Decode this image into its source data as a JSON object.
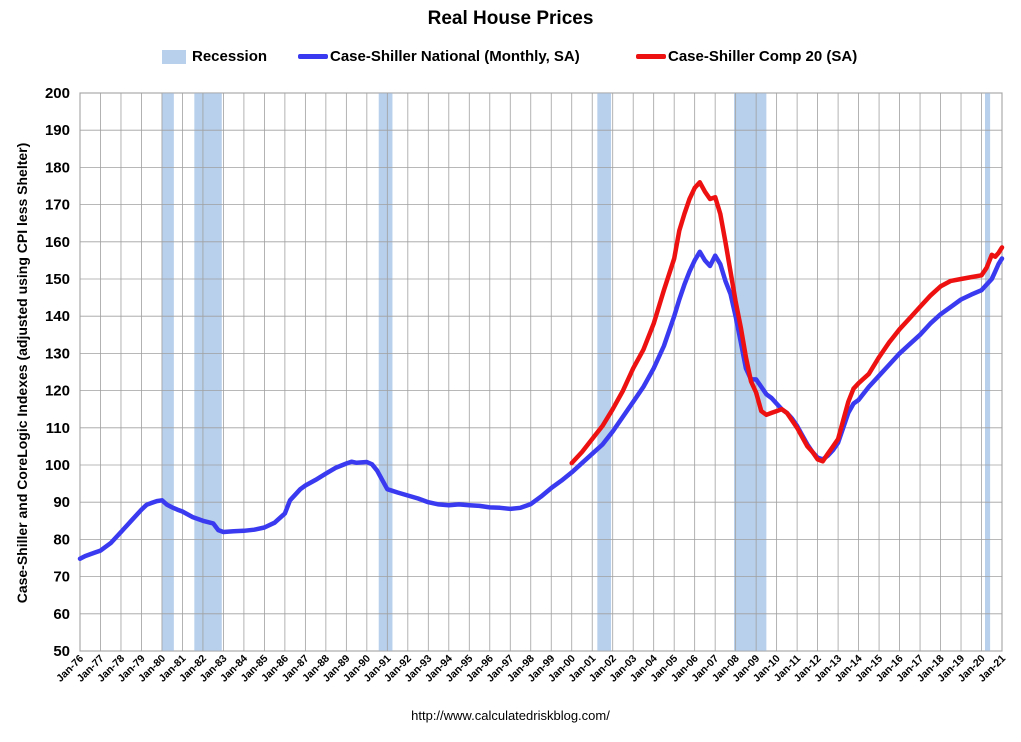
{
  "chart_data": {
    "type": "line",
    "title": "Real House Prices",
    "ylabel": "Case-Shiller and CoreLogic Indexes (adjusted using CPI less Shelter)",
    "xlabel": "",
    "ylim": [
      50,
      200
    ],
    "ytick_step": 10,
    "yticks": [
      "50",
      "60",
      "70",
      "80",
      "90",
      "100",
      "110",
      "120",
      "130",
      "140",
      "150",
      "160",
      "170",
      "180",
      "190",
      "200"
    ],
    "x_range_years": [
      1976.0,
      2021.0
    ],
    "xtick_labels": [
      "Jan-76",
      "Jan-77",
      "Jan-78",
      "Jan-79",
      "Jan-80",
      "Jan-81",
      "Jan-82",
      "Jan-83",
      "Jan-84",
      "Jan-85",
      "Jan-86",
      "Jan-87",
      "Jan-88",
      "Jan-89",
      "Jan-90",
      "Jan-91",
      "Jan-92",
      "Jan-93",
      "Jan-94",
      "Jan-95",
      "Jan-96",
      "Jan-97",
      "Jan-98",
      "Jan-99",
      "Jan-00",
      "Jan-01",
      "Jan-02",
      "Jan-03",
      "Jan-04",
      "Jan-05",
      "Jan-06",
      "Jan-07",
      "Jan-08",
      "Jan-09",
      "Jan-10",
      "Jan-11",
      "Jan-12",
      "Jan-13",
      "Jan-14",
      "Jan-15",
      "Jan-16",
      "Jan-17",
      "Jan-18",
      "Jan-19",
      "Jan-20",
      "Jan-21"
    ],
    "grid": true,
    "legend_position": "top",
    "recession_label": "Recession",
    "recession_color": "#b8d0ec",
    "recessions": [
      [
        1980.0,
        1980.58
      ],
      [
        1981.58,
        1982.92
      ],
      [
        1990.58,
        1991.25
      ],
      [
        2001.25,
        2001.92
      ],
      [
        2007.92,
        2009.5
      ],
      [
        2020.17,
        2020.42
      ]
    ],
    "series": [
      {
        "name": "Case-Shiller National (Monthly, SA)",
        "color": "#3a3af0",
        "x": [
          1976.0,
          1976.25,
          1976.5,
          1976.75,
          1977.0,
          1977.5,
          1978.0,
          1978.5,
          1979.0,
          1979.25,
          1979.5,
          1979.75,
          1980.0,
          1980.25,
          1980.5,
          1980.75,
          1981.0,
          1981.5,
          1982.0,
          1982.5,
          1982.75,
          1983.0,
          1983.5,
          1984.0,
          1984.5,
          1985.0,
          1985.5,
          1986.0,
          1986.25,
          1986.5,
          1986.75,
          1987.0,
          1987.5,
          1988.0,
          1988.5,
          1989.0,
          1989.25,
          1989.5,
          1990.0,
          1990.25,
          1990.5,
          1990.75,
          1991.0,
          1991.5,
          1992.0,
          1992.5,
          1993.0,
          1993.5,
          1994.0,
          1994.5,
          1995.0,
          1995.5,
          1996.0,
          1996.5,
          1997.0,
          1997.5,
          1998.0,
          1998.5,
          1999.0,
          1999.5,
          2000.0,
          2000.5,
          2001.0,
          2001.5,
          2002.0,
          2002.5,
          2003.0,
          2003.5,
          2004.0,
          2004.5,
          2005.0,
          2005.25,
          2005.5,
          2005.75,
          2006.0,
          2006.25,
          2006.5,
          2006.75,
          2007.0,
          2007.25,
          2007.5,
          2007.75,
          2008.0,
          2008.25,
          2008.5,
          2008.75,
          2009.0,
          2009.25,
          2009.5,
          2009.75,
          2010.0,
          2010.25,
          2010.5,
          2010.75,
          2011.0,
          2011.25,
          2011.5,
          2011.75,
          2012.0,
          2012.25,
          2012.5,
          2012.75,
          2013.0,
          2013.25,
          2013.5,
          2013.75,
          2014.0,
          2014.5,
          2015.0,
          2015.5,
          2016.0,
          2016.5,
          2017.0,
          2017.5,
          2018.0,
          2018.5,
          2019.0,
          2019.5,
          2020.0,
          2020.25,
          2020.5,
          2020.67,
          2020.83,
          2021.0
        ],
        "values": [
          74.8,
          75.5,
          76.0,
          76.5,
          77.0,
          79.0,
          82.0,
          85.0,
          88.0,
          89.3,
          89.8,
          90.3,
          90.5,
          89.3,
          88.6,
          88.0,
          87.5,
          86.0,
          85.0,
          84.3,
          82.5,
          82.0,
          82.2,
          82.3,
          82.6,
          83.2,
          84.5,
          87.0,
          90.5,
          92.0,
          93.5,
          94.5,
          96.0,
          97.7,
          99.3,
          100.4,
          100.9,
          100.6,
          100.8,
          100.2,
          98.5,
          96.0,
          93.5,
          92.6,
          91.8,
          91.0,
          90.0,
          89.4,
          89.2,
          89.4,
          89.2,
          89.0,
          88.6,
          88.5,
          88.2,
          88.5,
          89.5,
          91.5,
          93.8,
          95.8,
          98.0,
          100.5,
          103.0,
          105.5,
          109.0,
          113.0,
          117.0,
          121.0,
          126.0,
          132.0,
          140.0,
          144.5,
          148.5,
          152.0,
          155.0,
          157.3,
          155.0,
          153.5,
          156.3,
          154.0,
          149.5,
          146.0,
          140.0,
          133.0,
          126.0,
          123.0,
          123.0,
          121.0,
          119.0,
          118.0,
          116.5,
          115.0,
          114.0,
          112.5,
          110.5,
          108.0,
          105.5,
          103.5,
          102.0,
          101.5,
          102.5,
          104.0,
          106.0,
          110.0,
          114.0,
          116.5,
          117.5,
          121.0,
          124.0,
          127.0,
          130.0,
          132.5,
          135.0,
          138.0,
          140.5,
          142.5,
          144.5,
          145.8,
          147.0,
          148.5,
          150.0,
          152.0,
          154.0,
          155.5
        ]
      },
      {
        "name": "Case-Shiller Comp 20  (SA)",
        "color": "#ee1111",
        "x": [
          2000.0,
          2000.5,
          2001.0,
          2001.5,
          2002.0,
          2002.5,
          2003.0,
          2003.5,
          2004.0,
          2004.5,
          2005.0,
          2005.25,
          2005.5,
          2005.75,
          2006.0,
          2006.25,
          2006.5,
          2006.75,
          2007.0,
          2007.25,
          2007.5,
          2007.75,
          2008.0,
          2008.25,
          2008.5,
          2008.75,
          2009.0,
          2009.25,
          2009.5,
          2009.75,
          2010.0,
          2010.25,
          2010.5,
          2010.75,
          2011.0,
          2011.25,
          2011.5,
          2011.75,
          2012.0,
          2012.25,
          2012.5,
          2012.75,
          2013.0,
          2013.25,
          2013.5,
          2013.75,
          2014.0,
          2014.5,
          2015.0,
          2015.5,
          2016.0,
          2016.5,
          2017.0,
          2017.5,
          2018.0,
          2018.5,
          2019.0,
          2019.5,
          2020.0,
          2020.25,
          2020.5,
          2020.67,
          2020.83,
          2021.0
        ],
        "values": [
          100.5,
          103.5,
          107.0,
          110.5,
          115.0,
          120.0,
          126.0,
          131.0,
          138.0,
          147.0,
          155.5,
          163.0,
          167.5,
          171.5,
          174.5,
          176.0,
          173.5,
          171.5,
          172.0,
          167.5,
          160.0,
          152.0,
          144.0,
          137.0,
          129.0,
          122.5,
          119.5,
          114.5,
          113.5,
          114.0,
          114.5,
          115.0,
          114.0,
          112.0,
          110.0,
          107.5,
          105.0,
          103.5,
          101.5,
          101.0,
          103.0,
          105.0,
          107.0,
          112.0,
          117.0,
          120.5,
          122.0,
          124.5,
          129.0,
          133.0,
          136.5,
          139.5,
          142.5,
          145.5,
          148.0,
          149.5,
          150.0,
          150.5,
          151.0,
          153.0,
          156.5,
          156.0,
          157.0,
          158.5
        ]
      }
    ]
  },
  "source_url": "http://www.calculatedriskblog.com/"
}
